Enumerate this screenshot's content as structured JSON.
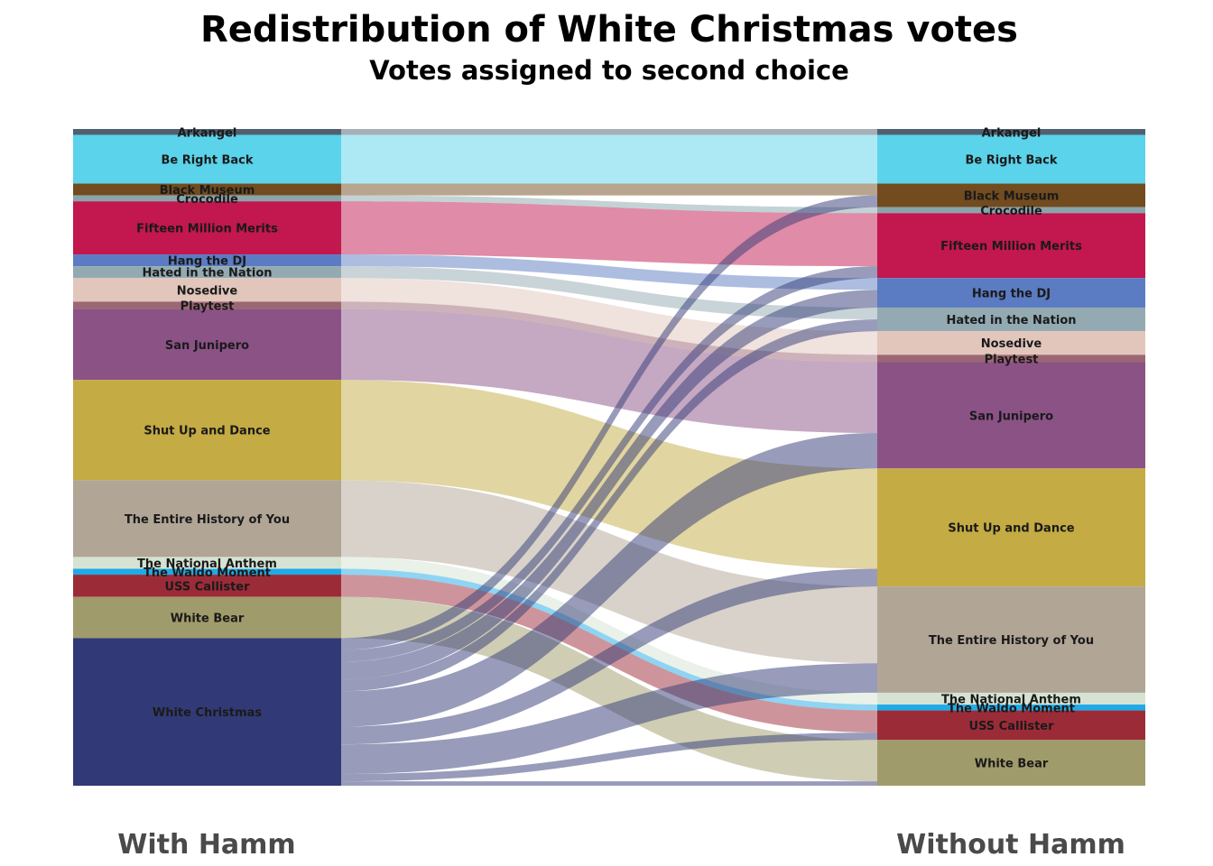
{
  "chart_data": {
    "type": "alluvial",
    "title": "Redistribution of White Christmas votes",
    "subtitle": "Votes assigned to second choice",
    "axes": [
      "With Hamm",
      "Without Hamm"
    ],
    "categories": [
      "Arkangel",
      "Be Right Back",
      "Black Museum",
      "Crocodile",
      "Fifteen Million Merits",
      "Hang the DJ",
      "Hated in the Nation",
      "Nosedive",
      "Playtest",
      "San Junipero",
      "Shut Up and Dance",
      "The Entire History of You",
      "The National Anthem",
      "The Waldo Moment",
      "USS Callister",
      "White Bear",
      "White Christmas"
    ],
    "colors": {
      "Arkangel": "#4f6070",
      "Be Right Back": "#5bd3ea",
      "Black Museum": "#724b1e",
      "Crocodile": "#88a5ac",
      "Fifteen Million Merits": "#c2174f",
      "Hang the DJ": "#5b7bc2",
      "Hated in the Nation": "#94aab2",
      "Nosedive": "#e2c6bb",
      "Playtest": "#9c6774",
      "San Junipero": "#8b5286",
      "Shut Up and Dance": "#c4ab44",
      "The Entire History of You": "#b1a596",
      "The National Anthem": "#d6e3d3",
      "The Waldo Moment": "#1faae8",
      "USS Callister": "#9c2b38",
      "White Bear": "#a09b6a",
      "White Christmas": "#313a76"
    },
    "with_hamm": [
      {
        "name": "Arkangel",
        "value": 4
      },
      {
        "name": "Be Right Back",
        "value": 33
      },
      {
        "name": "Black Museum",
        "value": 8
      },
      {
        "name": "Crocodile",
        "value": 4
      },
      {
        "name": "Fifteen Million Merits",
        "value": 36
      },
      {
        "name": "Hang the DJ",
        "value": 8
      },
      {
        "name": "Hated in the Nation",
        "value": 8
      },
      {
        "name": "Nosedive",
        "value": 16
      },
      {
        "name": "Playtest",
        "value": 5
      },
      {
        "name": "San Junipero",
        "value": 48
      },
      {
        "name": "Shut Up and Dance",
        "value": 68
      },
      {
        "name": "The Entire History of You",
        "value": 52
      },
      {
        "name": "The National Anthem",
        "value": 8
      },
      {
        "name": "The Waldo Moment",
        "value": 4
      },
      {
        "name": "USS Callister",
        "value": 15
      },
      {
        "name": "White Bear",
        "value": 28
      },
      {
        "name": "White Christmas",
        "value": 100
      }
    ],
    "without_hamm": [
      {
        "name": "Arkangel",
        "value": 4
      },
      {
        "name": "Be Right Back",
        "value": 33
      },
      {
        "name": "Black Museum",
        "value": 16
      },
      {
        "name": "Crocodile",
        "value": 4
      },
      {
        "name": "Fifteen Million Merits",
        "value": 44
      },
      {
        "name": "Hang the DJ",
        "value": 20
      },
      {
        "name": "Hated in the Nation",
        "value": 16
      },
      {
        "name": "Nosedive",
        "value": 16
      },
      {
        "name": "Playtest",
        "value": 5
      },
      {
        "name": "San Junipero",
        "value": 72
      },
      {
        "name": "Shut Up and Dance",
        "value": 80
      },
      {
        "name": "The Entire History of You",
        "value": 72
      },
      {
        "name": "The National Anthem",
        "value": 8
      },
      {
        "name": "The Waldo Moment",
        "value": 4
      },
      {
        "name": "USS Callister",
        "value": 20
      },
      {
        "name": "White Bear",
        "value": 31
      }
    ],
    "white_christmas_redistribution": [
      {
        "to": "Black Museum",
        "value": 8
      },
      {
        "to": "Fifteen Million Merits",
        "value": 8
      },
      {
        "to": "Hang the DJ",
        "value": 12
      },
      {
        "to": "Hated in the Nation",
        "value": 8
      },
      {
        "to": "San Junipero",
        "value": 24
      },
      {
        "to": "Shut Up and Dance",
        "value": 12
      },
      {
        "to": "The Entire History of You",
        "value": 20
      },
      {
        "to": "USS Callister",
        "value": 5
      },
      {
        "to": "White Bear",
        "value": 3
      }
    ]
  }
}
